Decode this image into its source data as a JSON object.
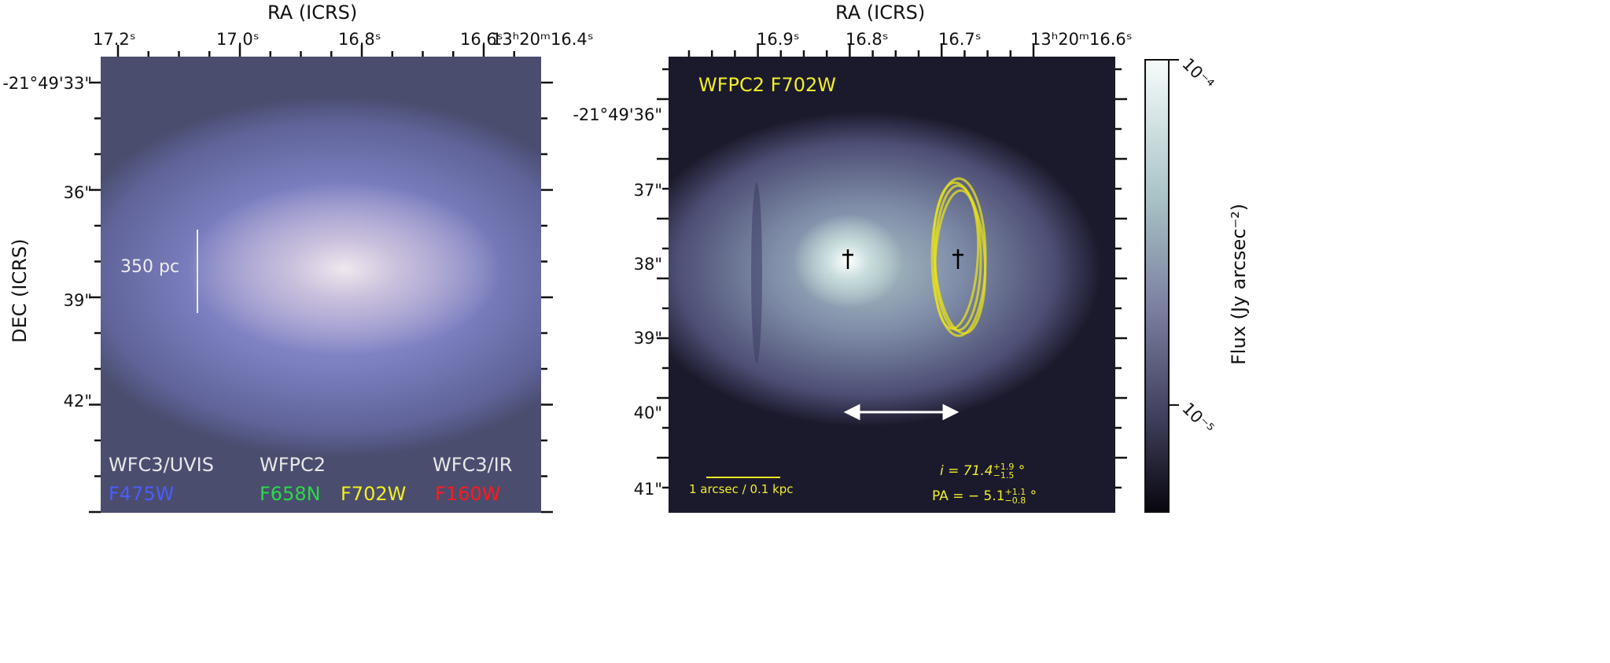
{
  "left_panel": {
    "x_axis_title": "RA (ICRS)",
    "y_axis_title": "DEC (ICRS)",
    "x_ticks": [
      "17.2ˢ",
      "17.0ˢ",
      "16.8ˢ",
      "16.6ˢ",
      "13ʰ20ᵐ16.4ˢ"
    ],
    "y_ticks": [
      "-21°49'33\"",
      "36\"",
      "39\"",
      "42\""
    ],
    "scale_bar": "350 pc",
    "instruments": [
      {
        "name": "WFC3/UVIS",
        "filter": "F475W",
        "filter_color": "#4a5cff"
      },
      {
        "name": "WFPC2",
        "filter": "F658N",
        "filter_color": "#2bd94a"
      },
      {
        "name": "",
        "filter": "F702W",
        "filter_color": "#f2f020"
      },
      {
        "name": "WFC3/IR",
        "filter": "F160W",
        "filter_color": "#ff1a1a"
      }
    ]
  },
  "right_panel": {
    "x_axis_title": "RA (ICRS)",
    "x_ticks": [
      "16.9ˢ",
      "16.8ˢ",
      "16.7ˢ",
      "13ʰ20ᵐ16.6ˢ"
    ],
    "y_ticks": [
      "-21°49'36\"",
      "37\"",
      "38\"",
      "39\"",
      "40\"",
      "41\""
    ],
    "label": "WFPC2 F702W",
    "label_color": "#f2ee2a",
    "scale_bar": "1 arcsec / 0.1 kpc",
    "inclination": "i = 71.4",
    "inclination_sup": "+1.9",
    "inclination_sub": "−1.5",
    "pa": "PA = − 5.1",
    "pa_sup": "+1.1",
    "pa_sub": "−0.8",
    "degree": "°"
  },
  "colorbar": {
    "label": "Flux (Jy arcsec⁻²)",
    "ticks": [
      "10⁻⁴",
      "10⁻⁵"
    ],
    "scale": "log"
  }
}
